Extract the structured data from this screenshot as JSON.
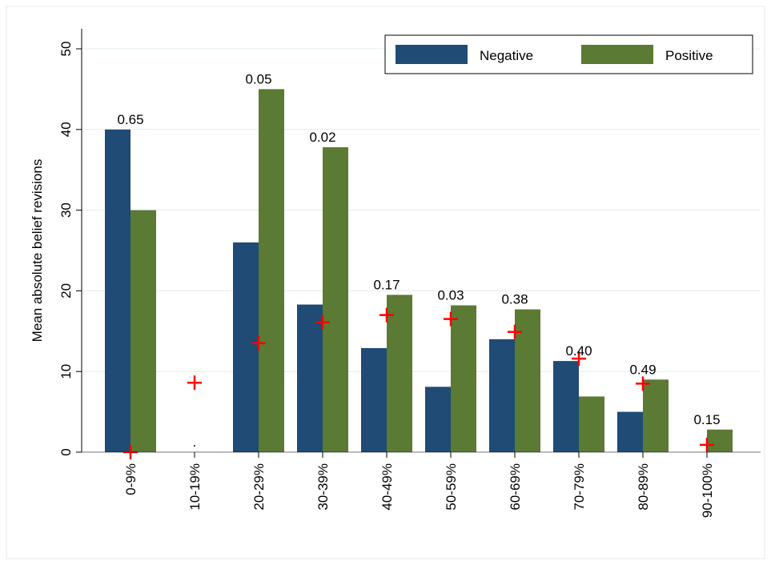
{
  "chart_data": {
    "type": "bar",
    "y_label": "Mean absolute belief revisions",
    "categories": [
      "0-9%",
      "10-19%",
      "20-29%",
      "30-39%",
      "40-49%",
      "50-59%",
      "60-69%",
      "70-79%",
      "80-89%",
      "90-100%"
    ],
    "series": [
      {
        "name": "Negative",
        "color": "#1f4b74",
        "values": [
          40,
          null,
          26,
          18.3,
          12.9,
          8.1,
          14,
          11.3,
          5,
          null
        ]
      },
      {
        "name": "Positive",
        "color": "#5b7a34",
        "values": [
          30,
          null,
          45,
          37.8,
          19.5,
          18.2,
          17.7,
          6.9,
          9,
          2.8
        ]
      }
    ],
    "markers": {
      "color": "#ff0000",
      "values": [
        0,
        8.6,
        13.5,
        16.1,
        17,
        16.5,
        14.9,
        11.6,
        8.5,
        0.9
      ]
    },
    "annotations": [
      "0.65",
      ".",
      "0.05",
      "0.02",
      "0.17",
      "0.03",
      "0.38",
      "0.40",
      "0.49",
      "0.15"
    ],
    "ylim": [
      0,
      50
    ],
    "yticks": [
      0,
      10,
      20,
      30,
      40,
      50
    ],
    "grid": true,
    "legend": "top-right"
  }
}
